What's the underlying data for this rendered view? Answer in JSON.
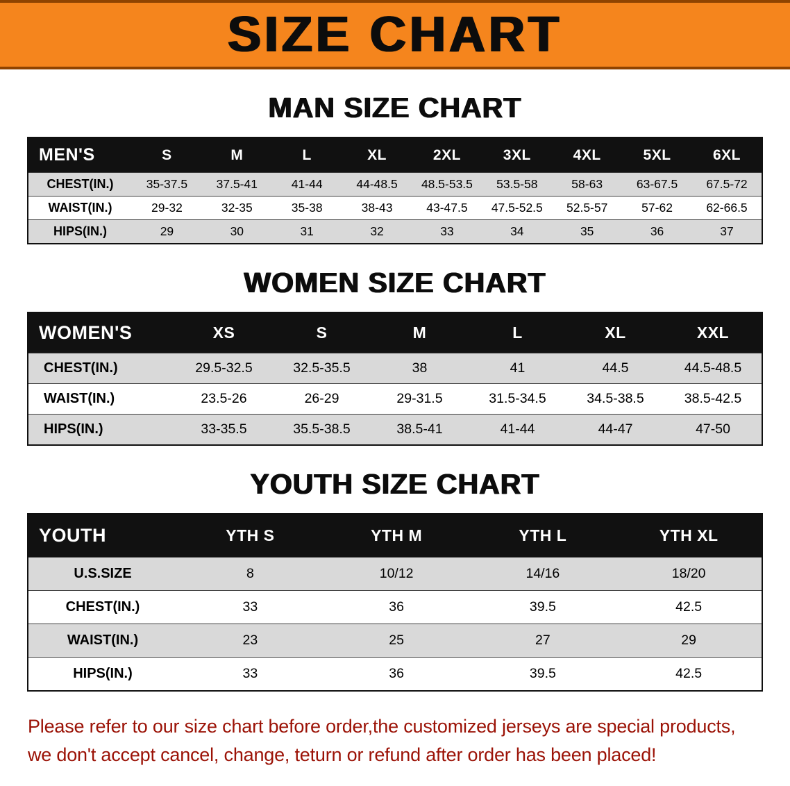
{
  "banner": {
    "title": "SIZE CHART"
  },
  "colors": {
    "accent_orange": "#f5851d",
    "header_black": "#111111",
    "row_shade": "#d9d9d9",
    "footer_red": "#9b1206"
  },
  "sections": {
    "men_heading": "MAN SIZE CHART",
    "women_heading": "WOMEN SIZE CHART",
    "youth_heading": "YOUTH SIZE CHART"
  },
  "tables": [
    {
      "id": "men",
      "header": [
        "MEN'S",
        "S",
        "M",
        "L",
        "XL",
        "2XL",
        "3XL",
        "4XL",
        "5XL",
        "6XL"
      ],
      "rows": [
        {
          "label": "CHEST(IN.)",
          "values": [
            "35-37.5",
            "37.5-41",
            "41-44",
            "44-48.5",
            "48.5-53.5",
            "53.5-58",
            "58-63",
            "63-67.5",
            "67.5-72"
          ]
        },
        {
          "label": "WAIST(IN.)",
          "values": [
            "29-32",
            "32-35",
            "35-38",
            "38-43",
            "43-47.5",
            "47.5-52.5",
            "52.5-57",
            "57-62",
            "62-66.5"
          ]
        },
        {
          "label": "HIPS(IN.)",
          "values": [
            "29",
            "30",
            "31",
            "32",
            "33",
            "34",
            "35",
            "36",
            "37"
          ]
        }
      ]
    },
    {
      "id": "women",
      "header": [
        "WOMEN'S",
        "XS",
        "S",
        "M",
        "L",
        "XL",
        "XXL"
      ],
      "rows": [
        {
          "label": "CHEST(IN.)",
          "values": [
            "29.5-32.5",
            "32.5-35.5",
            "38",
            "41",
            "44.5",
            "44.5-48.5"
          ]
        },
        {
          "label": "WAIST(IN.)",
          "values": [
            "23.5-26",
            "26-29",
            "29-31.5",
            "31.5-34.5",
            "34.5-38.5",
            "38.5-42.5"
          ]
        },
        {
          "label": "HIPS(IN.)",
          "values": [
            "33-35.5",
            "35.5-38.5",
            "38.5-41",
            "41-44",
            "44-47",
            "47-50"
          ]
        }
      ]
    },
    {
      "id": "youth",
      "header": [
        "YOUTH",
        "YTH S",
        "YTH M",
        "YTH L",
        "YTH XL"
      ],
      "rows": [
        {
          "label": "U.S.SIZE",
          "values": [
            "8",
            "10/12",
            "14/16",
            "18/20"
          ]
        },
        {
          "label": "CHEST(IN.)",
          "values": [
            "33",
            "36",
            "39.5",
            "42.5"
          ]
        },
        {
          "label": "WAIST(IN.)",
          "values": [
            "23",
            "25",
            "27",
            "29"
          ]
        },
        {
          "label": "HIPS(IN.)",
          "values": [
            "33",
            "36",
            "39.5",
            "42.5"
          ]
        }
      ]
    }
  ],
  "footer": {
    "line1": "Please refer to our size chart before order,the customized jerseys are special products,",
    "line2": "we don't accept cancel, change, teturn or refund after order has been placed!"
  }
}
